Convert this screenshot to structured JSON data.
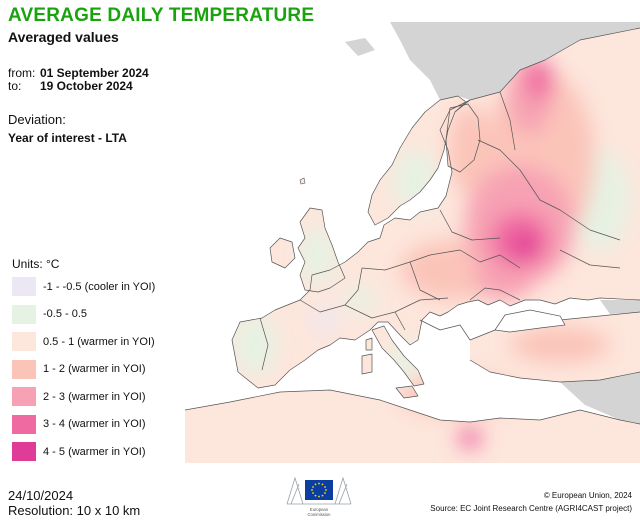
{
  "header": {
    "title": "AVERAGE DAILY TEMPERATURE",
    "subtitle": "Averaged values",
    "from_label": "from:",
    "from_date": "01 September 2024",
    "to_label": "to:",
    "to_date": "19 October 2024",
    "deviation_label": "Deviation:",
    "deviation_value": "Year of interest - LTA"
  },
  "legend": {
    "units": "Units: °C",
    "items": [
      {
        "label": "-1 - -0.5 (cooler in YOI)",
        "color": "#ebe8f4"
      },
      {
        "label": "-0.5 - 0.5",
        "color": "#e6f2e3"
      },
      {
        "label": "0.5 - 1 (warmer in YOI)",
        "color": "#fde6dc"
      },
      {
        "label": "1 - 2 (warmer in YOI)",
        "color": "#fbc4b9"
      },
      {
        "label": "2 - 3 (warmer in YOI)",
        "color": "#f7a2b4"
      },
      {
        "label": "3 - 4 (warmer in YOI)",
        "color": "#f06aa2"
      },
      {
        "label": "4 - 5 (warmer in YOI)",
        "color": "#df3c97"
      }
    ]
  },
  "footer": {
    "date": "24/10/2024",
    "resolution": "Resolution: 10 x 10 km",
    "copyright": "© European Union, 2024",
    "source": "Source: EC Joint Research Centre (AGRI4CAST project)",
    "logo_line1": "European",
    "logo_line2": "Commission"
  },
  "map": {
    "sea_color": "#ffffff",
    "outside_color": "#d4d4d4",
    "border_color": "#555555"
  }
}
